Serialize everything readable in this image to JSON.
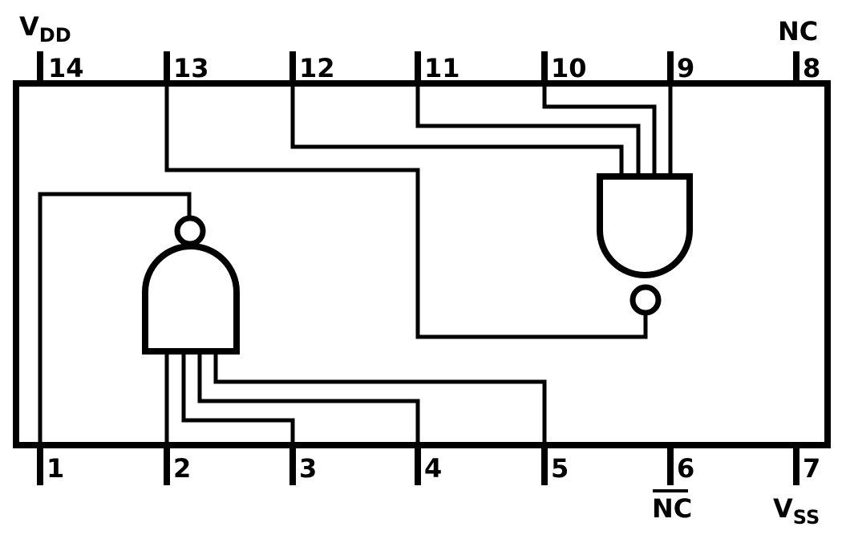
{
  "power": {
    "vdd": "V",
    "vdd_sub": "DD",
    "vss": "V",
    "vss_sub": "SS"
  },
  "pins_top": [
    "14",
    "13",
    "12",
    "11",
    "10",
    "9",
    "8"
  ],
  "pins_bottom": [
    "1",
    "2",
    "3",
    "4",
    "5",
    "6",
    "7"
  ],
  "nc_top": "NC",
  "nc_bottom": "NC",
  "colors": {
    "line": "#000000",
    "background": "#ffffff"
  }
}
